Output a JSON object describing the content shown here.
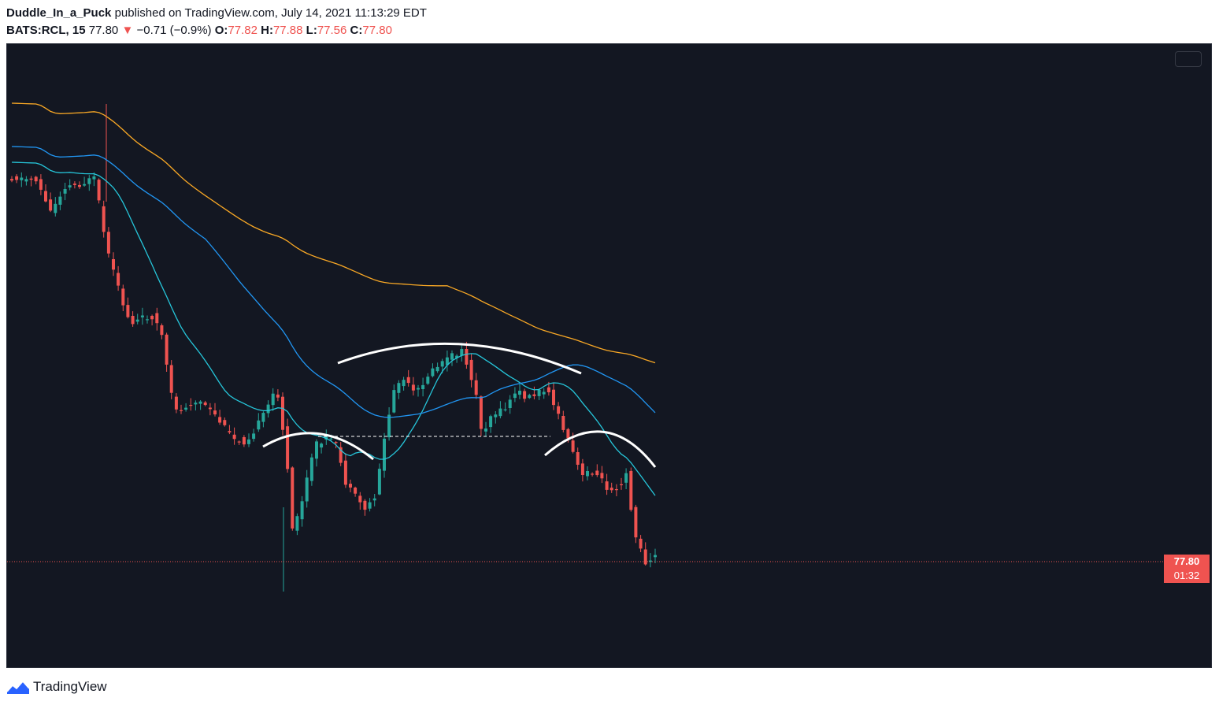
{
  "header": {
    "author": "Duddle_In_a_Puck",
    "published_text": "published on TradingView.com, July 14, 2021 11:13:29 EDT",
    "symbol": "BATS:RCL, 15",
    "last": "77.80",
    "change_arrow": "▼",
    "change": "−0.71 (−0.9%)",
    "o_label": "O:",
    "o_value": "77.82",
    "h_label": "H:",
    "h_value": "77.88",
    "l_label": "L:",
    "l_value": "77.56",
    "c_label": "C:",
    "c_value": "77.80"
  },
  "price_tag": {
    "price": "77.80",
    "countdown": "01:32"
  },
  "footer": {
    "brand": "TradingView",
    "logo_icon": "tradingview-logo-icon"
  },
  "colors": {
    "background": "#131722",
    "up": "#26a69a",
    "down": "#ef5350",
    "ma_fast": "#26c6da",
    "ma_mid": "#2196f3",
    "ma_slow": "#f9a825",
    "annotation": "#ffffff"
  },
  "chart_data": {
    "type": "candlestick",
    "symbol": "BATS:RCL",
    "interval": "15",
    "last_price": 77.8,
    "grid": false,
    "candle_count": 134,
    "moving_averages": [
      {
        "color": "#26c6da"
      },
      {
        "color": "#2196f3"
      },
      {
        "color": "#f9a825"
      }
    ],
    "annotations": [
      "left arc",
      "middle arc",
      "right arc",
      "dashed horizontal neckline"
    ]
  }
}
